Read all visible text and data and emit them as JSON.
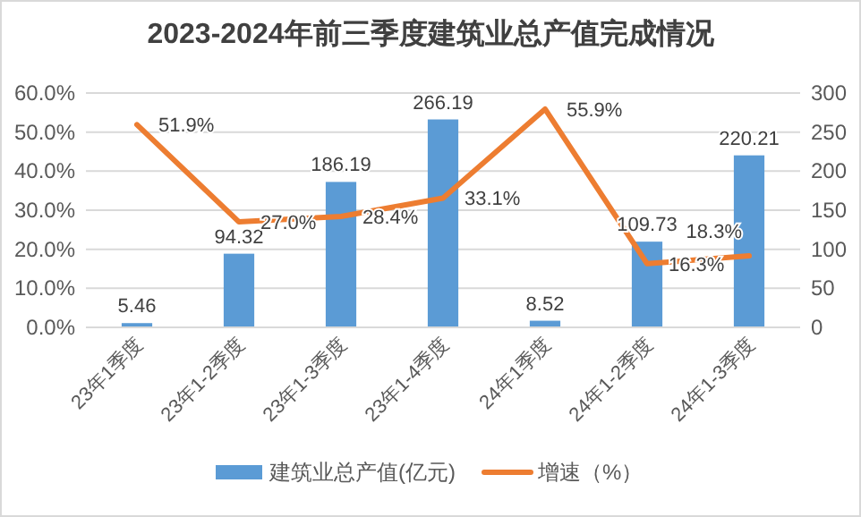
{
  "chart_data": {
    "type": "bar",
    "title": "2023-2024年前三季度建筑业总产值完成情况",
    "categories": [
      "23年1季度",
      "23年1-2季度",
      "23年1-3季度",
      "23年1-4季度",
      "24年1季度",
      "24年1-2季度",
      "24年1-3季度"
    ],
    "series": [
      {
        "name": "建筑业总产值(亿元)",
        "axis": "y2",
        "color": "#5b9bd5",
        "values": [
          5.46,
          94.32,
          186.19,
          266.19,
          8.52,
          109.73,
          220.21
        ],
        "value_labels": [
          "5.46",
          "94.32",
          "186.19",
          "266.19",
          "8.52",
          "109.73",
          "220.21"
        ]
      },
      {
        "name": "增速（%）",
        "type": "line",
        "axis": "y",
        "color": "#ed7d31",
        "values": [
          51.9,
          27.0,
          28.4,
          33.1,
          55.9,
          16.3,
          18.3
        ],
        "value_labels": [
          "51.9%",
          "27.0%",
          "28.4%",
          "33.1%",
          "55.9%",
          "16.3%",
          "18.3%"
        ]
      }
    ],
    "ylim": [
      0,
      60
    ],
    "yticks": [
      {
        "value": 0,
        "label": "0.0%"
      },
      {
        "value": 10,
        "label": "10.0%"
      },
      {
        "value": 20,
        "label": "20.0%"
      },
      {
        "value": 30,
        "label": "30.0%"
      },
      {
        "value": 40,
        "label": "40.0%"
      },
      {
        "value": 50,
        "label": "50.0%"
      },
      {
        "value": 60,
        "label": "60.0%"
      }
    ],
    "y2lim": [
      0,
      300
    ],
    "y2ticks": [
      0,
      50,
      100,
      150,
      200,
      250,
      300
    ],
    "grid": "y",
    "legend": "bottom",
    "marker": "none",
    "line_style": "solid"
  }
}
